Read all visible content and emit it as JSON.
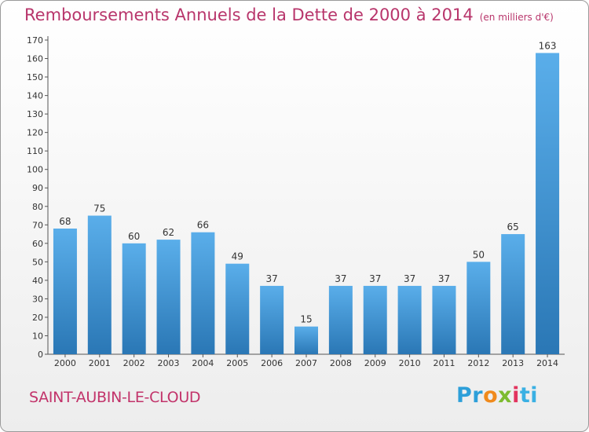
{
  "header": {
    "title": "Remboursements Annuels de la Dette de 2000 à 2014",
    "unit": "(en milliers d'€)"
  },
  "footer": {
    "commune": "SAINT-AUBIN-LE-CLOUD",
    "logo": [
      "Pr",
      "o",
      "x",
      "i",
      "ti"
    ]
  },
  "colors": {
    "bar_light": "#5aaeea",
    "bar_dark": "#2a77b5",
    "title": "#b8356b"
  },
  "chart_data": {
    "type": "bar",
    "title": "Remboursements Annuels de la Dette de 2000 à 2014",
    "subtitle": "(en milliers d'€)",
    "categories": [
      "2000",
      "2001",
      "2002",
      "2003",
      "2004",
      "2005",
      "2006",
      "2007",
      "2008",
      "2009",
      "2010",
      "2011",
      "2012",
      "2013",
      "2014"
    ],
    "values": [
      68,
      75,
      60,
      62,
      66,
      49,
      37,
      15,
      37,
      37,
      37,
      37,
      50,
      65,
      163
    ],
    "ylim": [
      0,
      170
    ],
    "yticks": [
      0,
      10,
      20,
      30,
      40,
      50,
      60,
      70,
      80,
      90,
      100,
      110,
      120,
      130,
      140,
      150,
      160,
      170
    ],
    "grid": false,
    "legend": "none"
  }
}
